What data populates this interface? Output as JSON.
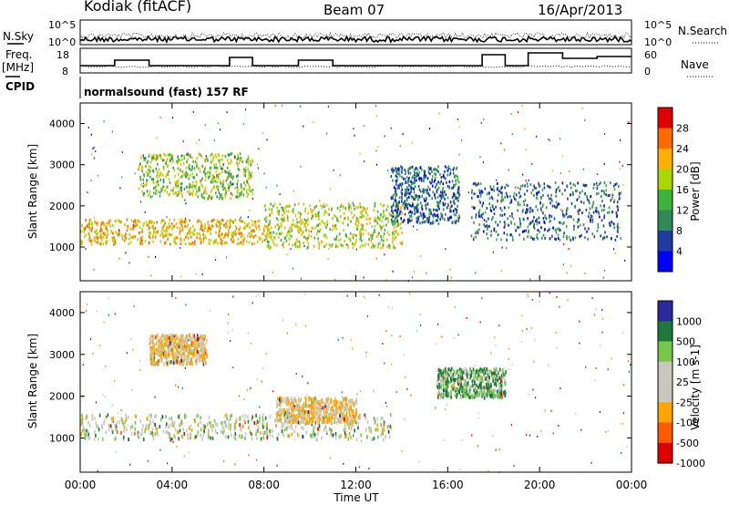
{
  "header": {
    "station": "Kodiak (fitACF)",
    "beam": "Beam 07",
    "date": "16/Apr/2013"
  },
  "params": {
    "nsky_label": "N.Sky",
    "nsearch_label": "N.Search",
    "nsky_ticks": [
      "10^5",
      "10^0"
    ],
    "nsearch_ticks": [
      "10^5",
      "10^0"
    ],
    "freq_label": "Freq.",
    "freq_unit": "[MHz]",
    "freq_ticks": [
      "18",
      "8"
    ],
    "nave_label": "Nave",
    "nave_ticks": [
      "60",
      "0"
    ],
    "cpid_label": "CPID",
    "cpid_text": "normalsound (fast) 157 RF"
  },
  "chart_data": [
    {
      "type": "heatmap",
      "title": "Power",
      "ylabel": "Slant Range [km]",
      "xlabel": "Time UT",
      "ylim": [
        180,
        4500
      ],
      "xlim": [
        "00:00",
        "24:00"
      ],
      "y_ticks": [
        "1000",
        "2000",
        "3000",
        "4000"
      ],
      "x_ticks": [
        "00:00",
        "04:00",
        "08:00",
        "12:00",
        "16:00",
        "20:00",
        "00:00"
      ],
      "colorbar": {
        "label": "Power [dB]",
        "ticks": [
          "28",
          "24",
          "20",
          "16",
          "12",
          "8",
          "4"
        ],
        "colors": [
          "#e00000",
          "#ff6a00",
          "#ffb000",
          "#a8d800",
          "#3cb43c",
          "#2e8b57",
          "#1e3ca0",
          "#0000ff"
        ]
      },
      "echo_regions": [
        {
          "t": [
            0.0,
            8.0
          ],
          "range_km": [
            1100,
            1700
          ],
          "value_db": 22
        },
        {
          "t": [
            2.5,
            7.5
          ],
          "range_km": [
            2200,
            3300
          ],
          "value_db": 16
        },
        {
          "t": [
            8.0,
            14.0
          ],
          "range_km": [
            1000,
            2100
          ],
          "value_db": 18
        },
        {
          "t": [
            13.5,
            16.5
          ],
          "range_km": [
            1600,
            3000
          ],
          "value_db": 8
        },
        {
          "t": [
            17.0,
            23.5
          ],
          "range_km": [
            1200,
            2600
          ],
          "value_db": 8
        }
      ]
    },
    {
      "type": "heatmap",
      "title": "Velocity",
      "ylabel": "Slant Range [km]",
      "xlabel": "Time UT",
      "ylim": [
        180,
        4500
      ],
      "xlim": [
        "00:00",
        "24:00"
      ],
      "y_ticks": [
        "1000",
        "2000",
        "3000",
        "4000"
      ],
      "x_ticks": [
        "00:00",
        "04:00",
        "08:00",
        "12:00",
        "16:00",
        "20:00",
        "00:00"
      ],
      "colorbar": {
        "label": "Velocity [m s-1]",
        "ticks": [
          "1000",
          "500",
          "100",
          "25",
          "-25",
          "-100",
          "-500",
          "-1000"
        ],
        "colors": [
          "#2a2aa0",
          "#1e7a3c",
          "#78c850",
          "#c8c8c0",
          "#c8c8c0",
          "#ffa500",
          "#ff5a00",
          "#e00000"
        ]
      },
      "echo_regions": [
        {
          "t": [
            0.0,
            13.5
          ],
          "range_km": [
            1000,
            1600
          ],
          "value_ms": 0
        },
        {
          "t": [
            3.0,
            5.5
          ],
          "range_km": [
            2800,
            3500
          ],
          "value_ms": -100
        },
        {
          "t": [
            8.5,
            12.0
          ],
          "range_km": [
            1400,
            2000
          ],
          "value_ms": -100
        },
        {
          "t": [
            15.5,
            18.5
          ],
          "range_km": [
            2000,
            2700
          ],
          "value_ms": 100
        }
      ]
    }
  ]
}
